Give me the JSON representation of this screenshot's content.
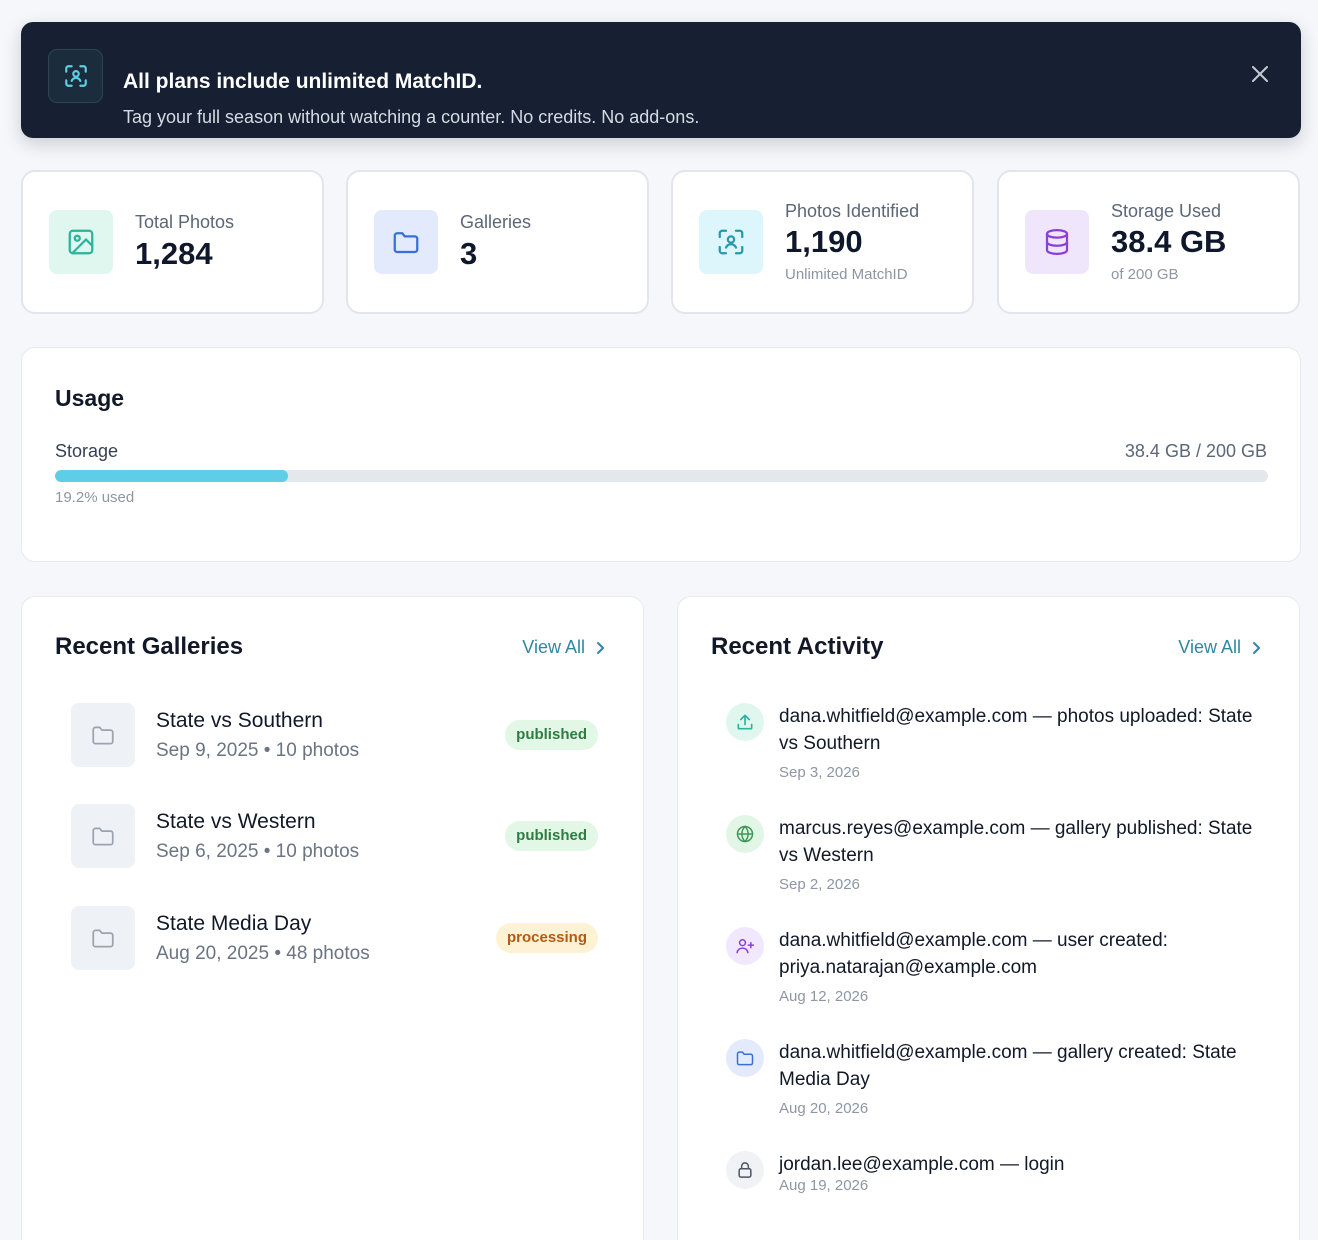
{
  "banner": {
    "title": "All plans include unlimited MatchID.",
    "subtitle": "Tag your full season without watching a counter. No credits. No add-ons.",
    "icon": "face-scan-icon",
    "close_icon": "close-icon"
  },
  "stats": [
    {
      "label": "Total Photos",
      "value": "1,284",
      "note": "",
      "icon": "image-icon",
      "color": "#2bb39c",
      "bg": "#e0f7ef"
    },
    {
      "label": "Galleries",
      "value": "3",
      "note": "",
      "icon": "folder-icon",
      "color": "#3b6fd8",
      "bg": "#e2eafb"
    },
    {
      "label": "Photos Identified",
      "value": "1,190",
      "note": "Unlimited MatchID",
      "icon": "face-scan-icon",
      "color": "#2a97ad",
      "bg": "#ddf6fb"
    },
    {
      "label": "Storage Used",
      "value": "38.4 GB",
      "note": "of 200 GB",
      "icon": "database-icon",
      "color": "#8b3fd6",
      "bg": "#f0e6fc"
    }
  ],
  "usage": {
    "title": "Usage",
    "storage_label": "Storage",
    "storage_amount": "38.4 GB / 200 GB",
    "percent_text": "19.2% used",
    "percent": 19.2,
    "bar_color": "#5fcde6"
  },
  "recent_galleries": {
    "title": "Recent Galleries",
    "view_all": "View All",
    "items": [
      {
        "name": "State vs Southern",
        "meta": "Sep 9, 2025 • 10 photos",
        "status": "published"
      },
      {
        "name": "State vs Western",
        "meta": "Sep 6, 2025 • 10 photos",
        "status": "published"
      },
      {
        "name": "State Media Day",
        "meta": "Aug 20, 2025 • 48 photos",
        "status": "processing"
      }
    ]
  },
  "recent_activity": {
    "title": "Recent Activity",
    "view_all": "View All",
    "items": [
      {
        "text": "dana.whitfield@example.com — photos uploaded: State vs Southern",
        "date": "Sep 3, 2026",
        "icon": "upload-icon",
        "color": "#2bb39c",
        "bg": "#e0f7ef"
      },
      {
        "text": "marcus.reyes@example.com — gallery published: State vs Western",
        "date": "Sep 2, 2026",
        "icon": "globe-icon",
        "color": "#3c9a54",
        "bg": "#e2f6e6"
      },
      {
        "text": "dana.whitfield@example.com — user created: priya.natarajan@example.com",
        "date": "Aug 12, 2026",
        "icon": "user-plus-icon",
        "color": "#8b3fd6",
        "bg": "#f2e8fd"
      },
      {
        "text": "dana.whitfield@example.com — gallery created: State Media Day",
        "date": "Aug 20, 2026",
        "icon": "folder-icon",
        "color": "#3b6fd8",
        "bg": "#e2eafb"
      },
      {
        "text": "jordan.lee@example.com — login",
        "date": "Aug 19, 2026",
        "icon": "lock-icon",
        "color": "#4b5563",
        "bg": "#f0f2f5"
      }
    ]
  }
}
